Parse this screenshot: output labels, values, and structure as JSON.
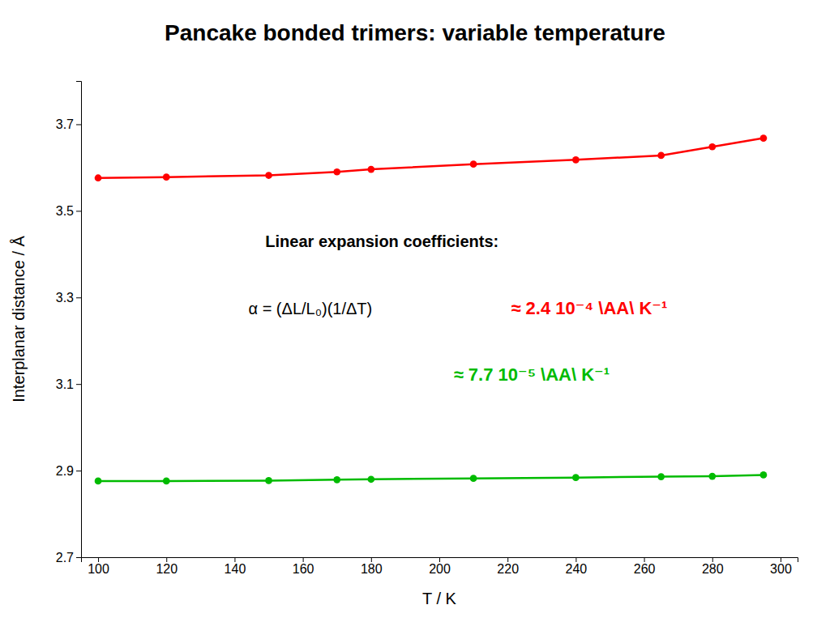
{
  "chart_data": {
    "type": "line",
    "title": "Pancake bonded trimers: variable temperature",
    "x_label": "T / K",
    "y_label": "Interplanar distance / Å",
    "x": [
      100,
      120,
      150,
      170,
      180,
      210,
      240,
      265,
      280,
      295
    ],
    "series": [
      {
        "color": "#ff0000",
        "marker": "circle",
        "line_style": "solid",
        "values": [
          3.576,
          3.578,
          3.582,
          3.59,
          3.596,
          3.608,
          3.618,
          3.628,
          3.648,
          3.668
        ]
      },
      {
        "color": "#00bb00",
        "marker": "circle",
        "line_style": "solid",
        "values": [
          2.876,
          2.876,
          2.877,
          2.879,
          2.88,
          2.882,
          2.884,
          2.886,
          2.887,
          2.89
        ]
      }
    ],
    "xlim": [
      95,
      305
    ],
    "ylim": [
      2.7,
      3.8
    ],
    "xticks": [
      100,
      120,
      140,
      160,
      180,
      200,
      220,
      240,
      260,
      280,
      300
    ],
    "yticks": [
      2.7,
      2.9,
      3.1,
      3.3,
      3.5,
      3.7
    ],
    "grid": false,
    "annotations": [
      {
        "text": "Linear expansion coefficients:"
      },
      {
        "text": "α = (ΔL/L₀)(1/ΔT)"
      },
      {
        "text": "≈ 2.4 10⁻⁴ \\AA\\ K⁻¹",
        "color": "#ff0000"
      },
      {
        "text": "≈ 7.7 10⁻⁵ \\AA\\ K⁻¹",
        "color": "#00bb00"
      }
    ]
  }
}
